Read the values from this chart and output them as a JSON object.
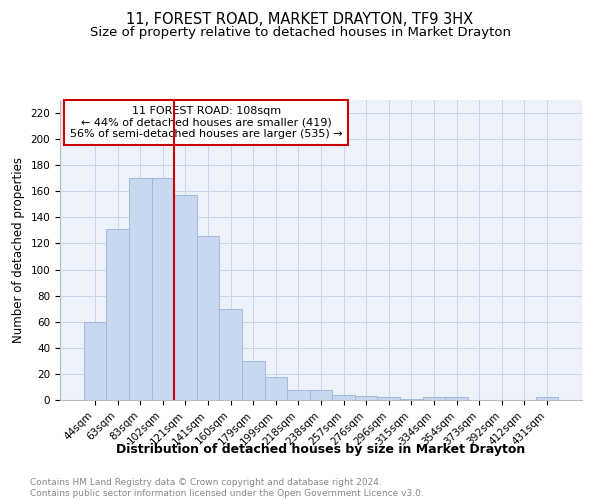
{
  "title": "11, FOREST ROAD, MARKET DRAYTON, TF9 3HX",
  "subtitle": "Size of property relative to detached houses in Market Drayton",
  "xlabel": "Distribution of detached houses by size in Market Drayton",
  "ylabel": "Number of detached properties",
  "categories": [
    "44sqm",
    "63sqm",
    "83sqm",
    "102sqm",
    "121sqm",
    "141sqm",
    "160sqm",
    "179sqm",
    "199sqm",
    "218sqm",
    "238sqm",
    "257sqm",
    "276sqm",
    "296sqm",
    "315sqm",
    "334sqm",
    "354sqm",
    "373sqm",
    "392sqm",
    "412sqm",
    "431sqm"
  ],
  "values": [
    60,
    131,
    170,
    170,
    157,
    126,
    70,
    30,
    18,
    8,
    8,
    4,
    3,
    2,
    1,
    2,
    2,
    0,
    0,
    0,
    2
  ],
  "bar_color": "#c8d8ee",
  "bar_edge_color": "#9ab4d8",
  "red_line_label": "11 FOREST ROAD: 108sqm",
  "annotation_line1": "← 44% of detached houses are smaller (419)",
  "annotation_line2": "56% of semi-detached houses are larger (535) →",
  "annotation_box_color": "white",
  "annotation_box_edge_color": "#cc0000",
  "red_line_color": "#cc0000",
  "ylim": [
    0,
    230
  ],
  "yticks": [
    0,
    20,
    40,
    60,
    80,
    100,
    120,
    140,
    160,
    180,
    200,
    220
  ],
  "grid_color": "#c8d4e8",
  "background_color": "#edf2fa",
  "footer_line1": "Contains HM Land Registry data © Crown copyright and database right 2024.",
  "footer_line2": "Contains public sector information licensed under the Open Government Licence v3.0.",
  "title_fontsize": 10.5,
  "subtitle_fontsize": 9.5,
  "xlabel_fontsize": 9,
  "ylabel_fontsize": 8.5,
  "tick_fontsize": 7.5,
  "footer_fontsize": 6.5
}
